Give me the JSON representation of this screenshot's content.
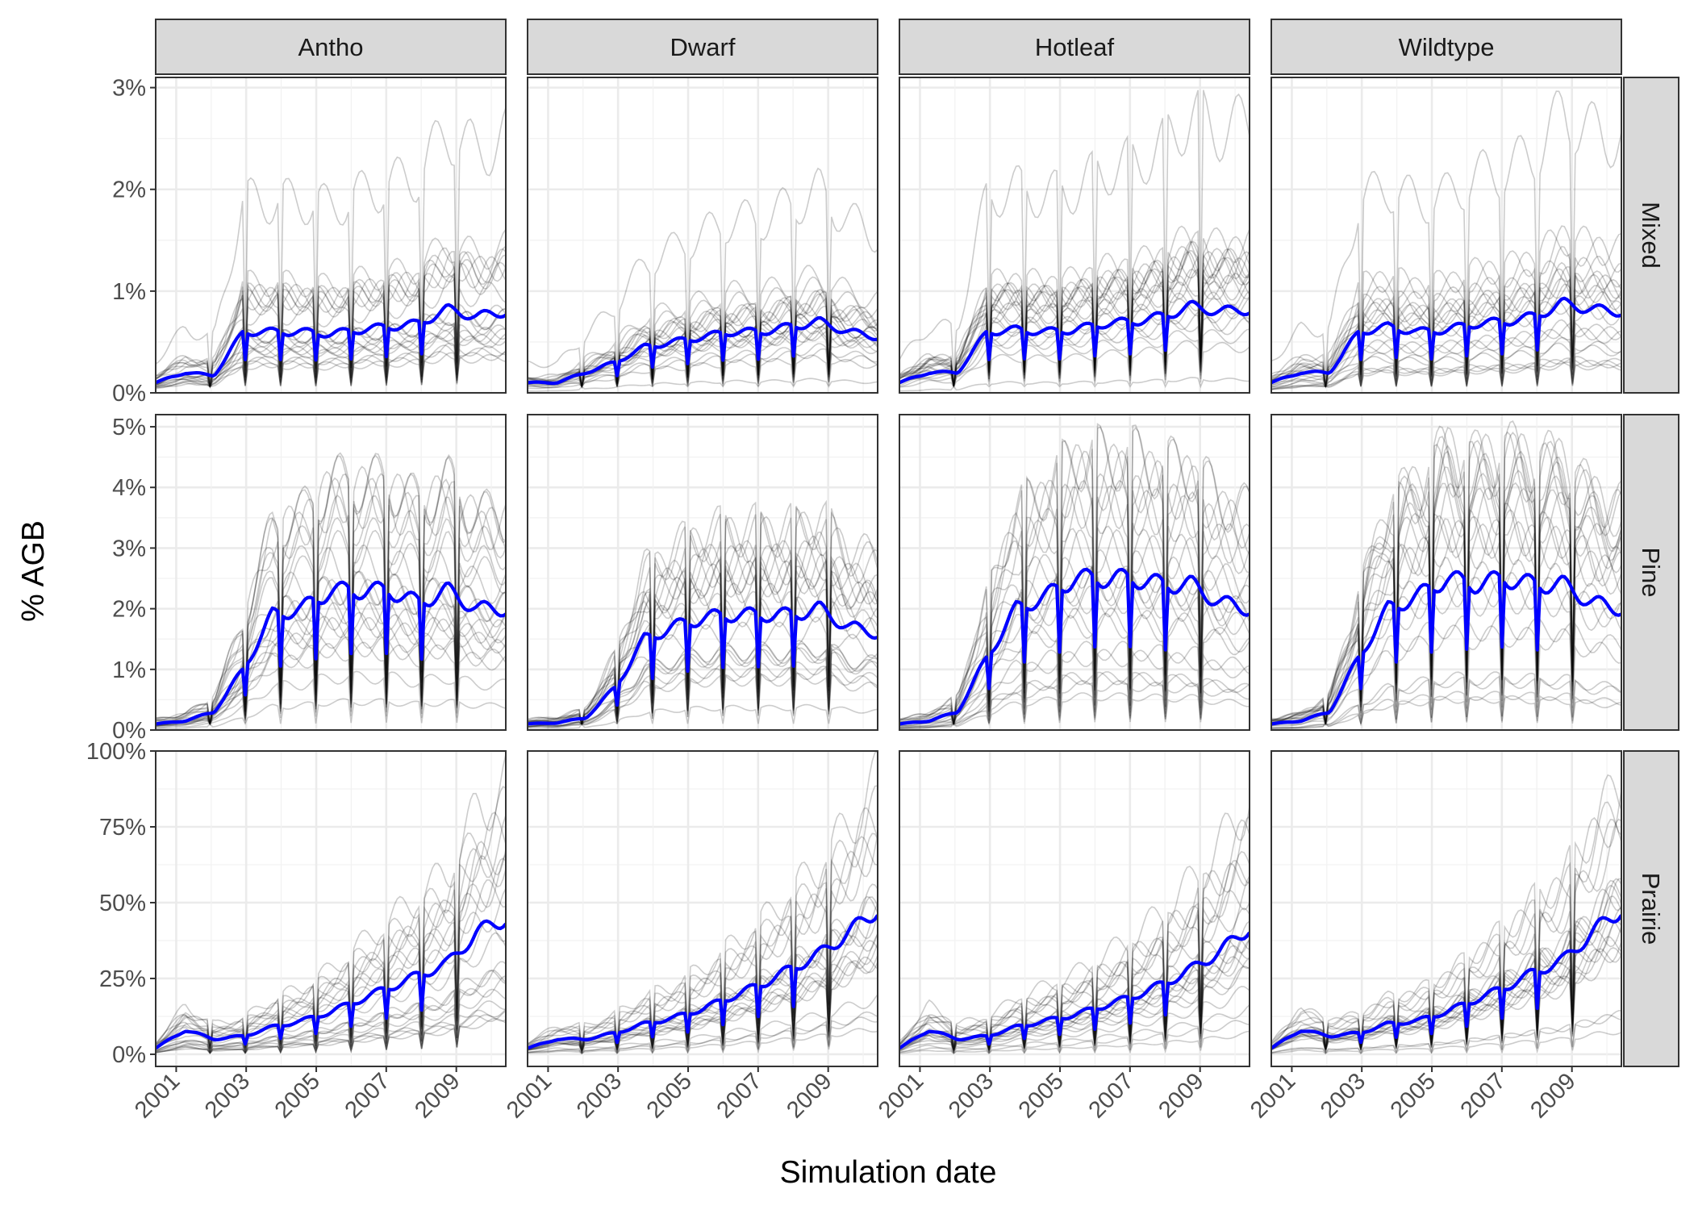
{
  "chart_data": {
    "type": "line",
    "xlabel": "Simulation date",
    "ylabel": "% AGB",
    "column_facets": [
      "Antho",
      "Dwarf",
      "Hotleaf",
      "Wildtype"
    ],
    "row_facets": [
      "Mixed",
      "Pine",
      "Prairie"
    ],
    "x_range": [
      "2000-06-01",
      "2010-06-01"
    ],
    "x_ticks": [
      "2001",
      "2003",
      "2005",
      "2007",
      "2009"
    ],
    "x_tick_dates": [
      "2001-01-01",
      "2003-01-01",
      "2005-01-01",
      "2007-01-01",
      "2009-01-01"
    ],
    "grid": true,
    "colors": {
      "ensemble_members": "#000000",
      "ensemble_mean": "#0000ff"
    },
    "rows": [
      {
        "facet": "Mixed",
        "ylim": [
          0,
          3.1
        ],
        "y_ticks": [
          0,
          1,
          2,
          3
        ],
        "y_tick_labels": [
          "0%",
          "1%",
          "2%",
          "3%"
        ],
        "panels": [
          {
            "facet": "Antho",
            "mean_series": [
              0.1,
              0.2,
              0.17,
              0.6,
              0.6,
              0.6,
              0.58,
              0.62,
              0.65,
              0.68,
              0.82,
              0.75,
              0.8
            ],
            "max_member_peak": 2.8
          },
          {
            "facet": "Dwarf",
            "mean_series": [
              0.1,
              0.1,
              0.2,
              0.3,
              0.45,
              0.5,
              0.55,
              0.6,
              0.6,
              0.65,
              0.7,
              0.6,
              0.55
            ],
            "max_member_peak": 2.15
          },
          {
            "facet": "Hotleaf",
            "mean_series": [
              0.1,
              0.2,
              0.2,
              0.6,
              0.62,
              0.6,
              0.62,
              0.68,
              0.7,
              0.75,
              0.85,
              0.8,
              0.82
            ],
            "max_member_peak": 2.98
          },
          {
            "facet": "Wildtype",
            "mean_series": [
              0.1,
              0.2,
              0.2,
              0.6,
              0.65,
              0.6,
              0.62,
              0.68,
              0.7,
              0.75,
              0.88,
              0.82,
              0.8
            ],
            "max_member_peak": 2.98
          }
        ]
      },
      {
        "facet": "Pine",
        "ylim": [
          0,
          5.2
        ],
        "y_ticks": [
          0,
          1,
          2,
          3,
          4,
          5
        ],
        "y_tick_labels": [
          "0%",
          "1%",
          "2%",
          "3%",
          "4%",
          "5%"
        ],
        "panels": [
          {
            "facet": "Antho",
            "mean_series": [
              0.1,
              0.15,
              0.3,
              1.0,
              1.9,
              2.0,
              2.3,
              2.3,
              2.3,
              2.1,
              2.3,
              2.0,
              2.0
            ],
            "max_member_peak": 4.1
          },
          {
            "facet": "Dwarf",
            "mean_series": [
              0.1,
              0.12,
              0.2,
              0.7,
              1.5,
              1.7,
              1.85,
              1.9,
              1.9,
              1.9,
              2.0,
              1.7,
              1.6
            ],
            "max_member_peak": 3.7
          },
          {
            "facet": "Hotleaf",
            "mean_series": [
              0.1,
              0.15,
              0.3,
              1.2,
              2.0,
              2.2,
              2.5,
              2.5,
              2.5,
              2.4,
              2.4,
              2.1,
              2.0
            ],
            "max_member_peak": 4.9
          },
          {
            "facet": "Wildtype",
            "mean_series": [
              0.1,
              0.15,
              0.3,
              1.2,
              2.0,
              2.2,
              2.5,
              2.4,
              2.5,
              2.4,
              2.4,
              2.1,
              2.0
            ],
            "max_member_peak": 5.0
          }
        ]
      },
      {
        "facet": "Prairie",
        "ylim": [
          -4,
          100
        ],
        "y_ticks": [
          0,
          25,
          50,
          75,
          100
        ],
        "y_tick_labels": [
          "0%",
          "25%",
          "50%",
          "75%",
          "100%"
        ],
        "panels": [
          {
            "facet": "Antho",
            "mean_series": [
              2,
              8,
              5,
              6,
              9,
              11,
              14,
              18,
              22,
              26,
              30,
              40,
              45
            ],
            "max_member_peak": 97
          },
          {
            "facet": "Dwarf",
            "mean_series": [
              2,
              5,
              5,
              7,
              10,
              12,
              15,
              19,
              23,
              28,
              33,
              40,
              48
            ],
            "max_member_peak": 98
          },
          {
            "facet": "Hotleaf",
            "mean_series": [
              2,
              8,
              5,
              6,
              9,
              11,
              13,
              16,
              19,
              23,
              28,
              34,
              42
            ],
            "max_member_peak": 92
          },
          {
            "facet": "Wildtype",
            "mean_series": [
              2,
              8,
              6,
              7,
              10,
              11,
              14,
              18,
              22,
              27,
              31,
              40,
              48
            ],
            "max_member_peak": 97
          }
        ]
      }
    ]
  }
}
